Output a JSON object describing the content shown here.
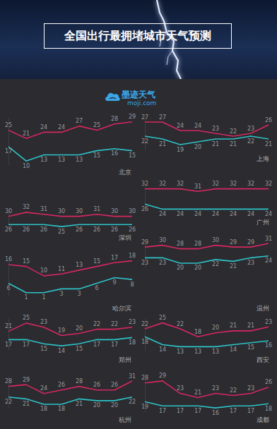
{
  "title": "全国出行最拥堵城市天气预测",
  "logo": {
    "name": "墨迹天气",
    "url": "moji.com"
  },
  "chart_data": [
    {
      "type": "line",
      "title": "北京",
      "categories": [
        null,
        null,
        null,
        null,
        null,
        null,
        null,
        null
      ],
      "ylim": [
        8,
        31
      ],
      "data_labels": true,
      "tick_labels": false,
      "grid": false,
      "marker": "none",
      "series": [
        {
          "color": "#d6285f",
          "values": [
            25,
            21,
            24,
            24,
            27,
            25,
            28,
            29
          ]
        },
        {
          "color": "#2ec4c8",
          "values": [
            17,
            10,
            13,
            13,
            13,
            15,
            16,
            15
          ]
        }
      ]
    },
    {
      "type": "line",
      "title": "上海",
      "categories": [
        null,
        null,
        null,
        null,
        null,
        null,
        null,
        null
      ],
      "ylim": [
        17,
        29
      ],
      "data_labels": true,
      "tick_labels": false,
      "grid": false,
      "marker": "none",
      "series": [
        {
          "color": "#d6285f",
          "values": [
            27,
            27,
            24,
            24,
            23,
            22,
            23,
            26
          ]
        },
        {
          "color": "#2ec4c8",
          "values": [
            22,
            21,
            19,
            20,
            21,
            21,
            22,
            21
          ]
        }
      ]
    },
    {
      "type": "line",
      "title": "深圳",
      "categories": [
        null,
        null,
        null,
        null,
        null,
        null,
        null,
        null
      ],
      "ylim": [
        24,
        33
      ],
      "data_labels": true,
      "tick_labels": false,
      "grid": false,
      "marker": "none",
      "series": [
        {
          "color": "#d6285f",
          "values": [
            30,
            32,
            31,
            30,
            30,
            31,
            30,
            30
          ]
        },
        {
          "color": "#2ec4c8",
          "values": [
            26,
            26,
            26,
            25,
            26,
            26,
            26,
            26
          ]
        }
      ]
    },
    {
      "type": "line",
      "title": "广州",
      "categories": [
        null,
        null,
        null,
        null,
        null,
        null,
        null,
        null
      ],
      "ylim": [
        23,
        33
      ],
      "data_labels": true,
      "tick_labels": false,
      "grid": false,
      "marker": "none",
      "series": [
        {
          "color": "#d6285f",
          "values": [
            32,
            32,
            32,
            31,
            32,
            32,
            32,
            32
          ]
        },
        {
          "color": "#2ec4c8",
          "values": [
            26,
            24,
            24,
            24,
            24,
            24,
            24,
            24
          ]
        }
      ]
    },
    {
      "type": "line",
      "title": "哈尔滨",
      "categories": [
        null,
        null,
        null,
        null,
        null,
        null,
        null,
        null
      ],
      "ylim": [
        -1,
        19
      ],
      "data_labels": true,
      "tick_labels": false,
      "grid": false,
      "marker": "none",
      "series": [
        {
          "color": "#d6285f",
          "values": [
            16,
            15,
            10,
            11,
            13,
            15,
            17,
            18
          ]
        },
        {
          "color": "#2ec4c8",
          "values": [
            6,
            1,
            1,
            3,
            3,
            6,
            9,
            8
          ]
        }
      ]
    },
    {
      "type": "line",
      "title": "温州",
      "categories": [
        null,
        null,
        null,
        null,
        null,
        null,
        null,
        null
      ],
      "ylim": [
        18,
        33
      ],
      "data_labels": true,
      "tick_labels": false,
      "grid": false,
      "marker": "none",
      "series": [
        {
          "color": "#d6285f",
          "values": [
            29,
            30,
            28,
            28,
            30,
            29,
            29,
            31
          ]
        },
        {
          "color": "#2ec4c8",
          "values": [
            23,
            23,
            20,
            20,
            22,
            21,
            23,
            24
          ]
        }
      ]
    },
    {
      "type": "line",
      "title": "郑州",
      "categories": [
        null,
        null,
        null,
        null,
        null,
        null,
        null,
        null
      ],
      "ylim": [
        12,
        27
      ],
      "data_labels": true,
      "tick_labels": false,
      "grid": false,
      "marker": "none",
      "series": [
        {
          "color": "#d6285f",
          "values": [
            21,
            25,
            23,
            19,
            20,
            22,
            22,
            23
          ]
        },
        {
          "color": "#2ec4c8",
          "values": [
            17,
            17,
            15,
            14,
            15,
            17,
            17,
            18
          ]
        }
      ]
    },
    {
      "type": "line",
      "title": "西安",
      "categories": [
        null,
        null,
        null,
        null,
        null,
        null,
        null,
        null
      ],
      "ylim": [
        11,
        27
      ],
      "data_labels": true,
      "tick_labels": false,
      "grid": false,
      "marker": "none",
      "series": [
        {
          "color": "#d6285f",
          "values": [
            22,
            25,
            22,
            18,
            20,
            21,
            21,
            23
          ]
        },
        {
          "color": "#2ec4c8",
          "values": [
            18,
            14,
            13,
            13,
            13,
            14,
            15,
            16
          ]
        }
      ]
    },
    {
      "type": "line",
      "title": "杭州",
      "categories": [
        null,
        null,
        null,
        null,
        null,
        null,
        null,
        null
      ],
      "ylim": [
        16,
        33
      ],
      "data_labels": true,
      "tick_labels": false,
      "grid": false,
      "marker": "none",
      "series": [
        {
          "color": "#d6285f",
          "values": [
            28,
            29,
            24,
            26,
            28,
            26,
            26,
            31
          ]
        },
        {
          "color": "#2ec4c8",
          "values": [
            22,
            21,
            18,
            18,
            21,
            20,
            20,
            22
          ]
        }
      ]
    },
    {
      "type": "line",
      "title": "成都",
      "categories": [
        null,
        null,
        null,
        null,
        null,
        null,
        null,
        null
      ],
      "ylim": [
        14,
        31
      ],
      "data_labels": true,
      "tick_labels": false,
      "grid": false,
      "marker": "none",
      "series": [
        {
          "color": "#d6285f",
          "values": [
            28,
            29,
            23,
            21,
            23,
            22,
            23,
            26
          ]
        },
        {
          "color": "#2ec4c8",
          "values": [
            19,
            17,
            17,
            17,
            16,
            17,
            17,
            18
          ]
        }
      ]
    }
  ]
}
